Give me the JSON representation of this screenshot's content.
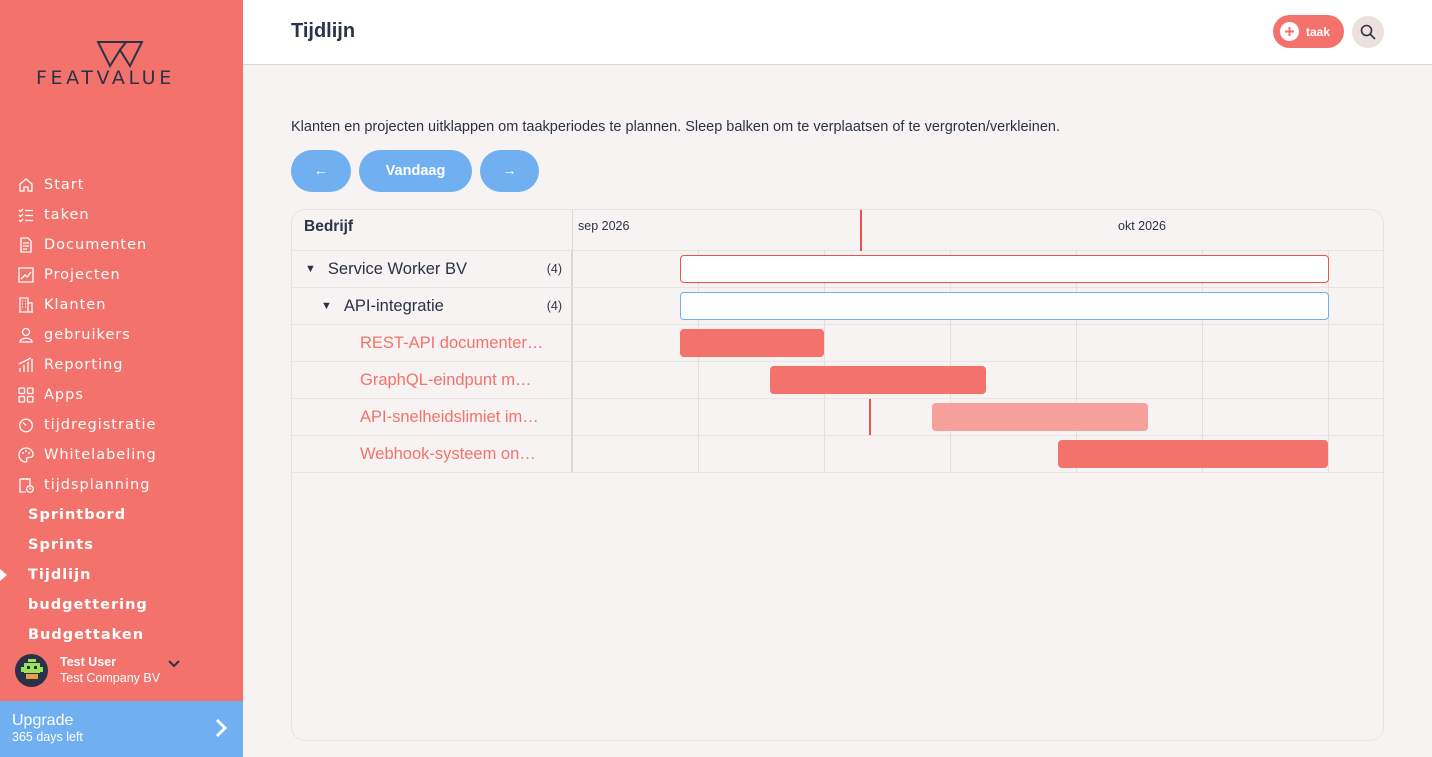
{
  "brand": {
    "logo_text": "FEATVALUE",
    "accent": "#f3726b",
    "secondary": "#70b0f0",
    "dark": "#2b3247"
  },
  "sidebar": {
    "items": [
      {
        "label": "Start",
        "icon": "home-icon"
      },
      {
        "label": "taken",
        "icon": "checklist-icon"
      },
      {
        "label": "Documenten",
        "icon": "document-icon"
      },
      {
        "label": "Projecten",
        "icon": "chart-icon"
      },
      {
        "label": "Klanten",
        "icon": "building-icon"
      },
      {
        "label": "gebruikers",
        "icon": "user-icon"
      },
      {
        "label": "Reporting",
        "icon": "reporting-icon"
      },
      {
        "label": "Apps",
        "icon": "apps-icon"
      },
      {
        "label": "tijdregistratie",
        "icon": "stopwatch-icon"
      },
      {
        "label": "Whitelabeling",
        "icon": "whitelabel-icon"
      },
      {
        "label": "tijdsplanning",
        "icon": "planning-icon"
      }
    ],
    "subitems": [
      {
        "label": "Sprintbord",
        "active": false
      },
      {
        "label": "Sprints",
        "active": false
      },
      {
        "label": "Tijdlijn",
        "active": true
      },
      {
        "label": "budgettering",
        "active": false
      },
      {
        "label": "Budgettaken",
        "active": false
      }
    ],
    "user": {
      "name": "Test User",
      "company": "Test Company BV"
    },
    "upgrade": {
      "title": "Upgrade",
      "subtitle": "365 days left"
    }
  },
  "header": {
    "title": "Tijdlijn",
    "task_button_label": "taak"
  },
  "main": {
    "intro": "Klanten en projecten uitklappen om taakperiodes te plannen. Sleep balken om te verplaatsen of te vergroten/verkleinen.",
    "prev_label": "←",
    "today_label": "Vandaag",
    "next_label": "→"
  },
  "timeline": {
    "column_header": "Bedrijf",
    "months": [
      "sep 2026",
      "okt 2026"
    ],
    "rows": [
      {
        "label": "Service Worker BV",
        "count": "(4)",
        "kind": "company"
      },
      {
        "label": "API-integratie",
        "count": "(4)",
        "kind": "project"
      },
      {
        "label": "REST-API documenter…",
        "kind": "task"
      },
      {
        "label": "GraphQL-eindpunt m…",
        "kind": "task"
      },
      {
        "label": "API-snelheidslimiet im…",
        "kind": "task"
      },
      {
        "label": "Webhook-systeem on…",
        "kind": "task"
      }
    ]
  }
}
